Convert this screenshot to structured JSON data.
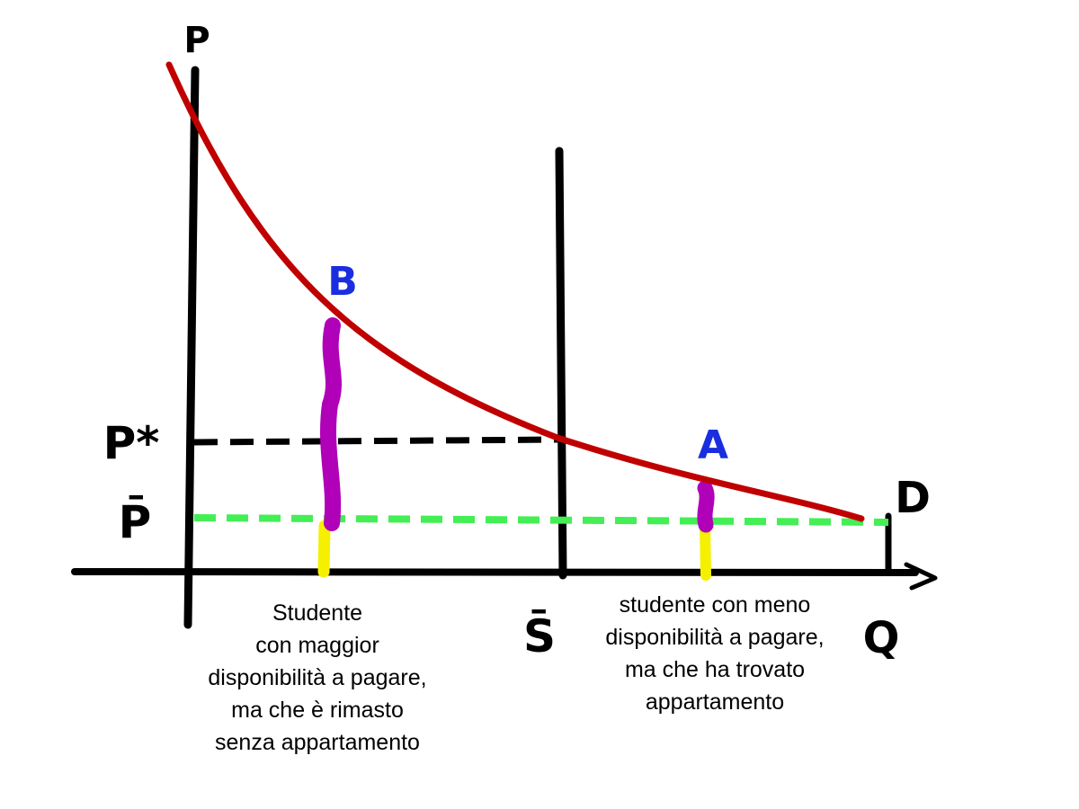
{
  "axis_labels": {
    "price": "P",
    "quantity": "Q",
    "equilibrium_price": "P*",
    "capped_price": "P̄",
    "supply": "S̄",
    "demand": "D"
  },
  "points": {
    "b": "B",
    "a": "A"
  },
  "captions": {
    "left": [
      "Studente",
      "con maggior",
      "disponibilità a pagare,",
      "ma che è rimasto",
      "senza appartamento"
    ],
    "right": [
      "studente con meno",
      "disponibilità a pagare,",
      "ma che ha trovato",
      "appartamento"
    ]
  },
  "colors": {
    "demand_curve": "#c00000",
    "axes": "#000000",
    "price_ceiling": "#44ee55",
    "surplus_bar": "#b000b8",
    "price_bar": "#f5f000",
    "point_labels": "#1a2ee0"
  }
}
